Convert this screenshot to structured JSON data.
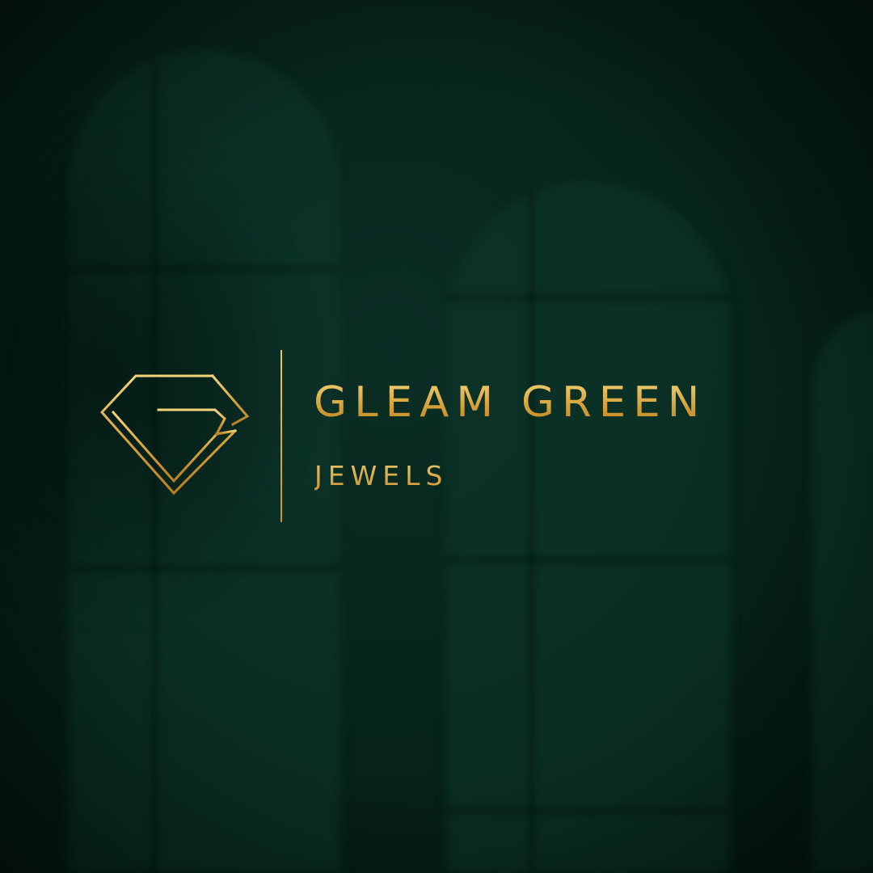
{
  "brand": {
    "name": "GLEAM GREEN",
    "tagline": "JEWELS",
    "logo_icon": "gem-diamond-icon"
  },
  "colors": {
    "background": "#05211b",
    "gold_light": "#f2d57a",
    "gold": "#d6a23a",
    "gold_dark": "#b9801f"
  }
}
